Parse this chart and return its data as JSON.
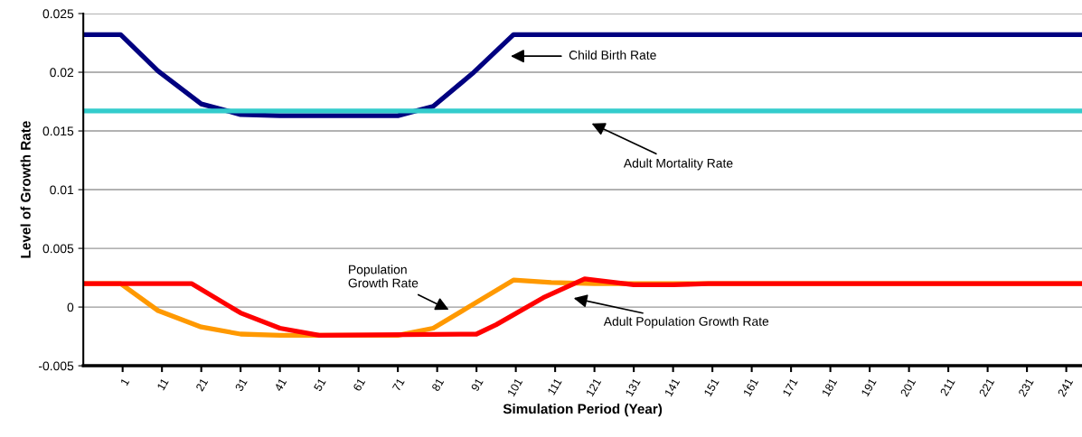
{
  "chart_data": {
    "type": "line",
    "xlabel": "Simulation Period (Year)",
    "ylabel": "Level of Growth Rate",
    "xlim": [
      -9,
      245
    ],
    "xticks": [
      1,
      11,
      21,
      31,
      41,
      51,
      61,
      71,
      81,
      91,
      101,
      111,
      121,
      131,
      141,
      151,
      161,
      171,
      181,
      191,
      201,
      211,
      221,
      231,
      241
    ],
    "ylim": [
      -0.005,
      0.025
    ],
    "yticks": [
      -0.005,
      0,
      0.005,
      0.01,
      0.015,
      0.02,
      0.025
    ],
    "grid": "y",
    "marker": "none",
    "line_style": "solid",
    "series": [
      {
        "color": "#000080",
        "x": [
          -9,
          0.5,
          10,
          21,
          31,
          41,
          71,
          80,
          90,
          100.4,
          245
        ],
        "values": [
          0.0232,
          0.0232,
          0.0201,
          0.0173,
          0.0164,
          0.0163,
          0.0163,
          0.0171,
          0.0199,
          0.0232,
          0.0232
        ]
      },
      {
        "color": "#33cccc",
        "x": [
          -9,
          245
        ],
        "values": [
          0.0167,
          0.0167
        ]
      },
      {
        "color": "#ff9900",
        "x": [
          -9,
          0.5,
          10,
          21,
          31,
          41,
          71,
          80,
          89,
          100.4,
          110,
          121,
          245
        ],
        "values": [
          0.002,
          0.002,
          -0.0003,
          -0.0017,
          -0.0023,
          -0.0024,
          -0.0024,
          -0.0018,
          0,
          0.0023,
          0.0021,
          0.002,
          0.002
        ]
      },
      {
        "color": "#ff0000",
        "x": [
          -9,
          18.5,
          31,
          41,
          51,
          91,
          96,
          108,
          118.5,
          131,
          141,
          150,
          245
        ],
        "values": [
          0.002,
          0.002,
          -0.0005,
          -0.0018,
          -0.0024,
          -0.0023,
          -0.0015,
          0.0008,
          0.0024,
          0.0019,
          0.0019,
          0.002,
          0.002
        ]
      }
    ],
    "annotations": [
      "Child Birth Rate",
      "Adult Mortality Rate",
      "Population\nGrowth Rate",
      "Adult Population Growth Rate"
    ]
  }
}
